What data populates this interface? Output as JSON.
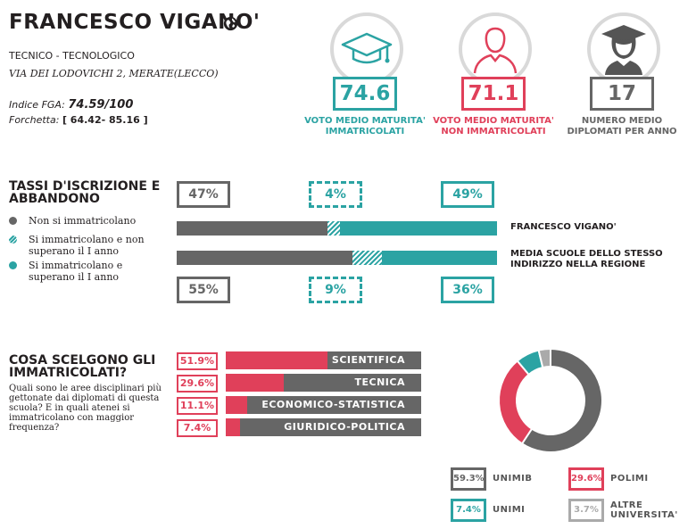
{
  "header": {
    "school_name": "FRANCESCO VIGANO'",
    "school_type": "TECNICO - TECNOLOGICO",
    "address": "VIA DEI LODOVICHI 2, MERATE(LECCO)",
    "fga_label": "Indice FGA:",
    "fga_value": "74.59/100",
    "fork_label": "Forchetta:",
    "fork_value": "[ 64.42- 85.16 ]",
    "globe_icon": "globe-icon"
  },
  "stats": [
    {
      "value": "74.6",
      "label": "VOTO MEDIO MATURITA' IMMATRICOLATI",
      "color": "#2ba3a3",
      "icon": "graduation-cap-icon"
    },
    {
      "value": "71.1",
      "label": "VOTO MEDIO MATURITA' NON IMMATRICOLATI",
      "color": "#e0405a",
      "icon": "person-icon"
    },
    {
      "value": "17",
      "label": "NUMERO MEDIO DIPLOMATI PER ANNO",
      "color": "#666666",
      "icon": "graduate-person-icon"
    }
  ],
  "enrollment": {
    "title": "TASSI D'ISCRIZIONE E ABBANDONO",
    "legend": [
      {
        "label": "Non si immatricolano",
        "color": "#666666"
      },
      {
        "label": "Si immatricolano e non superano il I anno",
        "color": "#2ba3a3",
        "pattern": "hatched"
      },
      {
        "label": "Si immatricolano e superano il I anno",
        "color": "#2ba3a3"
      }
    ],
    "school_label": "FRANCESCO VIGANO'",
    "region_label": "MEDIA SCUOLE DELLO STESSO INDIRIZZO NELLA REGIONE"
  },
  "choices": {
    "title": "COSA SCELGONO GLI IMMATRICOLATI?",
    "question": "Quali sono le aree disciplinari più gettonate dai diplomati di questa scuola? E in quali atenei si immatricolano con maggior frequenza?"
  },
  "chart_data": [
    {
      "type": "bar",
      "stacked": true,
      "categories": [
        "FRANCESCO VIGANO'",
        "MEDIA SCUOLE DELLO STESSO INDIRIZZO NELLA REGIONE"
      ],
      "series": [
        {
          "name": "Non si immatricolano",
          "values": [
            47,
            55
          ],
          "labels": [
            "47%",
            "55%"
          ],
          "color": "#666666"
        },
        {
          "name": "Si immatricolano e non superano il I anno",
          "values": [
            4,
            9
          ],
          "labels": [
            "4%",
            "9%"
          ],
          "color": "#2ba3a3"
        },
        {
          "name": "Si immatricolano e superano il I anno",
          "values": [
            49,
            36
          ],
          "labels": [
            "49%",
            "36%"
          ],
          "color": "#2ba3a3"
        }
      ],
      "ylim": [
        0,
        100
      ]
    },
    {
      "type": "bar",
      "orientation": "horizontal",
      "categories": [
        "SCIENTIFICA",
        "TECNICA",
        "ECONOMICO-STATISTICA",
        "GIURIDICO-POLITICA"
      ],
      "values": [
        51.9,
        29.6,
        11.1,
        7.4
      ],
      "labels": [
        "51.9%",
        "29.6%",
        "11.1%",
        "7.4%"
      ],
      "xlim": [
        0,
        100
      ],
      "colors": {
        "fill": "#e0405a",
        "rest": "#666666"
      }
    },
    {
      "type": "pie",
      "donut": true,
      "categories": [
        "UNIMIB",
        "POLIMI",
        "UNIMI",
        "ALTRE UNIVERSITA'"
      ],
      "values": [
        59.3,
        29.6,
        7.4,
        3.7
      ],
      "labels": [
        "59.3%",
        "29.6%",
        "7.4%",
        "3.7%"
      ],
      "colors": [
        "#666666",
        "#e0405a",
        "#2ba3a3",
        "#aaaaaa"
      ]
    }
  ]
}
